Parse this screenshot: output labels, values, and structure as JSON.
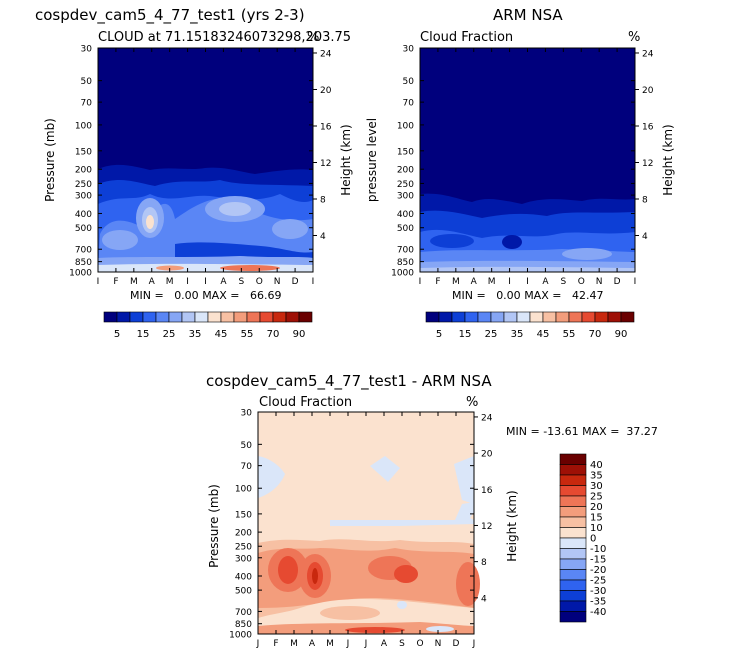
{
  "chart_data": [
    {
      "type": "heatmap",
      "title": "cospdev_cam5_4_77_test1 (yrs 2-3)",
      "subtitle_left": "CLOUD at 71.15183246073298,203.75",
      "subtitle_right": "%",
      "ylabel": "Pressure (mb)",
      "ylabel_right": "Height (km)",
      "x_ticks": [
        "J",
        "F",
        "M",
        "A",
        "M",
        "J",
        "J",
        "A",
        "S",
        "O",
        "N",
        "D",
        "J"
      ],
      "y_ticks": [
        "30",
        "50",
        "70",
        "100",
        "150",
        "200",
        "250",
        "300",
        "400",
        "500",
        "700",
        "850",
        "1000"
      ],
      "y_ticks_right": [
        "24",
        "20",
        "16",
        "12",
        "8",
        "4"
      ],
      "min_label": "MIN =",
      "min_value": "0.00",
      "max_label": "MAX =",
      "max_value": "66.69",
      "cbar_levels": [
        "5",
        "15",
        "25",
        "35",
        "45",
        "55",
        "70",
        "90"
      ]
    },
    {
      "type": "heatmap",
      "title": "ARM NSA",
      "subtitle_left": "Cloud Fraction",
      "subtitle_right": "%",
      "ylabel": "pressure level",
      "ylabel_right": "Height (km)",
      "x_ticks": [
        "J",
        "F",
        "M",
        "A",
        "M",
        "J",
        "J",
        "A",
        "S",
        "O",
        "N",
        "D",
        "J"
      ],
      "y_ticks": [
        "30",
        "50",
        "70",
        "100",
        "150",
        "200",
        "250",
        "300",
        "400",
        "500",
        "700",
        "850",
        "1000"
      ],
      "y_ticks_right": [
        "24",
        "20",
        "16",
        "12",
        "8",
        "4"
      ],
      "min_label": "MIN =",
      "min_value": "0.00",
      "max_label": "MAX =",
      "max_value": "42.47",
      "cbar_levels": [
        "5",
        "15",
        "25",
        "35",
        "45",
        "55",
        "70",
        "90"
      ]
    },
    {
      "type": "heatmap",
      "title": "cospdev_cam5_4_77_test1 - ARM NSA",
      "subtitle_left": "Cloud Fraction",
      "subtitle_right": "%",
      "ylabel": "Pressure (mb)",
      "ylabel_right": "Height (km)",
      "x_ticks": [
        "J",
        "F",
        "M",
        "A",
        "M",
        "J",
        "J",
        "A",
        "S",
        "O",
        "N",
        "D",
        "J"
      ],
      "y_ticks": [
        "30",
        "50",
        "70",
        "100",
        "150",
        "200",
        "250",
        "300",
        "400",
        "500",
        "700",
        "850",
        "1000"
      ],
      "y_ticks_right": [
        "24",
        "20",
        "16",
        "12",
        "8",
        "4"
      ],
      "min_label": "MIN =",
      "min_value": "-13.61",
      "max_label": "MAX =",
      "max_value": "37.27",
      "cbar_levels": [
        "40",
        "35",
        "30",
        "25",
        "20",
        "15",
        "10",
        "0",
        "-10",
        "-15",
        "-20",
        "-25",
        "-30",
        "-35",
        "-40"
      ]
    }
  ],
  "colors": {
    "seq_scale": [
      "#00007d",
      "#0018a8",
      "#0d3fd6",
      "#2f63f0",
      "#5a86f5",
      "#86a6f5",
      "#b2c6f5",
      "#dae6f9",
      "#fbe2cf",
      "#f7c0a3",
      "#f39d7c",
      "#ee7557",
      "#e64a31",
      "#c8280e",
      "#9e1006",
      "#6a0000"
    ],
    "diff_scale": [
      "#6a0000",
      "#9e1006",
      "#c8280e",
      "#e64a31",
      "#ee7557",
      "#f39d7c",
      "#f7c0a3",
      "#fbe2cf",
      "#dae6f9",
      "#b2c6f5",
      "#86a6f5",
      "#5a86f5",
      "#2f63f0",
      "#0d3fd6",
      "#0018a8",
      "#00007d"
    ]
  }
}
